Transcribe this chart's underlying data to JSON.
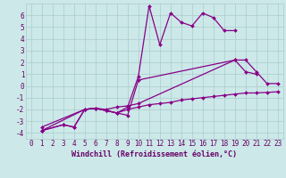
{
  "background_color": "#cce8e8",
  "grid_color": "#aacccc",
  "line_color": "#880088",
  "xlabel": "Windchill (Refroidissement éolien,°C)",
  "ylim": [
    -4.5,
    7.0
  ],
  "xlim": [
    -0.5,
    23.5
  ],
  "yticks": [
    -4,
    -3,
    -2,
    -1,
    0,
    1,
    2,
    3,
    4,
    5,
    6
  ],
  "xticks": [
    0,
    1,
    2,
    3,
    4,
    5,
    6,
    7,
    8,
    9,
    10,
    11,
    12,
    13,
    14,
    15,
    16,
    17,
    18,
    19,
    20,
    21,
    22,
    23
  ],
  "font_color": "#660066",
  "font_size": 5.5,
  "xlabel_fontsize": 6.0,
  "line_width": 0.9,
  "marker_size": 2.0,
  "line_a_x": [
    1,
    3,
    4,
    5,
    6,
    7,
    8,
    9,
    10,
    11,
    12,
    13,
    14,
    15,
    16,
    17,
    18,
    19
  ],
  "line_a_y": [
    -3.8,
    -3.3,
    -3.5,
    -2.0,
    -1.9,
    -2.1,
    -2.3,
    -1.8,
    0.8,
    6.8,
    3.5,
    6.2,
    5.4,
    5.1,
    6.2,
    5.8,
    4.7,
    4.7
  ],
  "line_b_x": [
    1,
    3,
    4,
    5,
    6,
    7,
    8,
    9,
    10,
    19,
    20,
    21,
    22,
    23
  ],
  "line_b_y": [
    -3.8,
    -3.3,
    -3.5,
    -2.0,
    -1.9,
    -2.1,
    -2.3,
    -2.5,
    0.5,
    2.2,
    2.2,
    1.2,
    0.2,
    0.2
  ],
  "line_c_x": [
    1,
    5,
    6,
    7,
    8,
    9,
    10,
    11,
    12,
    13,
    14,
    15,
    16,
    17,
    18,
    19,
    20,
    21,
    22,
    23
  ],
  "line_c_y": [
    -3.8,
    -2.0,
    -1.9,
    -2.1,
    -2.3,
    -2.0,
    -1.8,
    -1.6,
    -1.5,
    -1.4,
    -1.2,
    -1.1,
    -1.0,
    -0.9,
    -0.8,
    -0.7,
    -0.6,
    -0.6,
    -0.55,
    -0.5
  ],
  "line_d_x": [
    1,
    5,
    6,
    7,
    8,
    9,
    10,
    19,
    20,
    21
  ],
  "line_d_y": [
    -3.5,
    -2.0,
    -1.9,
    -2.0,
    -1.8,
    -1.7,
    -1.5,
    2.2,
    1.2,
    1.0
  ]
}
